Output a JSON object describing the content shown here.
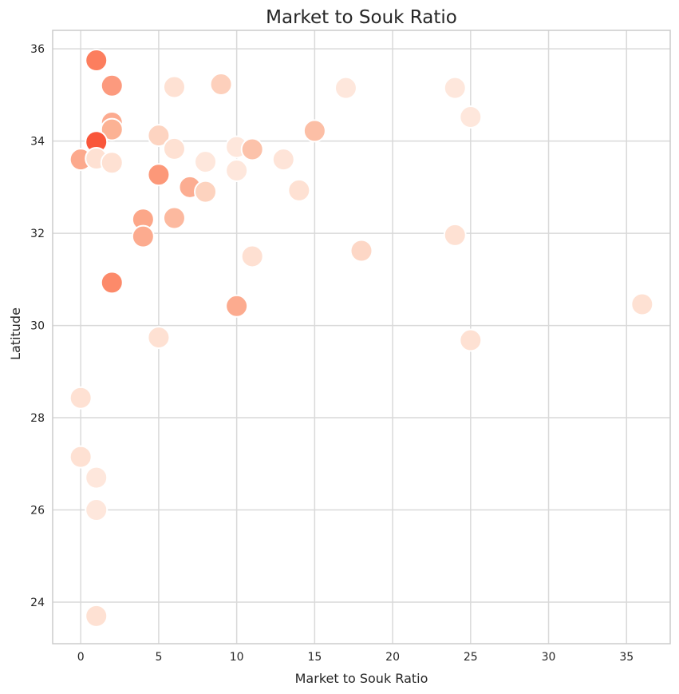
{
  "chart_data": {
    "type": "scatter",
    "title": "Market to Souk Ratio",
    "xlabel": "Market to Souk Ratio",
    "ylabel": "Latitude",
    "xlim": [
      -1.8,
      37.8
    ],
    "ylim": [
      23.1,
      36.4
    ],
    "xticks": [
      0,
      5,
      10,
      15,
      20,
      25,
      30,
      35
    ],
    "yticks": [
      24,
      26,
      28,
      30,
      32,
      34,
      36
    ],
    "xtick_labels": [
      "0",
      "5",
      "10",
      "15",
      "20",
      "25",
      "30",
      "35"
    ],
    "ytick_labels": [
      "24",
      "26",
      "28",
      "30",
      "32",
      "34",
      "36"
    ],
    "grid": true,
    "background": "#ffffff",
    "grid_color": "#d9d9d9",
    "marker_edge_color": "#ffffff",
    "points": [
      {
        "x": 1,
        "y": 35.75,
        "color": "#fc7e5e"
      },
      {
        "x": 2,
        "y": 35.2,
        "color": "#fc9a7e"
      },
      {
        "x": 2,
        "y": 34.4,
        "color": "#fcab90"
      },
      {
        "x": 2,
        "y": 34.25,
        "color": "#fcb294"
      },
      {
        "x": 1,
        "y": 33.98,
        "color": "#f9563a"
      },
      {
        "x": 0,
        "y": 33.6,
        "color": "#fca98d"
      },
      {
        "x": 1,
        "y": 33.62,
        "color": "#fee1d3"
      },
      {
        "x": 2,
        "y": 33.53,
        "color": "#fee1d3"
      },
      {
        "x": 5,
        "y": 34.12,
        "color": "#fdd4c1"
      },
      {
        "x": 6,
        "y": 35.17,
        "color": "#fee1d3"
      },
      {
        "x": 9,
        "y": 35.23,
        "color": "#fdd0bc"
      },
      {
        "x": 6,
        "y": 33.83,
        "color": "#fee1d3"
      },
      {
        "x": 5,
        "y": 33.27,
        "color": "#fc9879"
      },
      {
        "x": 7,
        "y": 33.0,
        "color": "#fcad92"
      },
      {
        "x": 8,
        "y": 33.55,
        "color": "#fee7dc"
      },
      {
        "x": 8,
        "y": 32.9,
        "color": "#fdd3bf"
      },
      {
        "x": 10,
        "y": 33.87,
        "color": "#fee7dc"
      },
      {
        "x": 10,
        "y": 33.36,
        "color": "#fee7dc"
      },
      {
        "x": 11,
        "y": 33.82,
        "color": "#fcc2aa"
      },
      {
        "x": 13,
        "y": 33.6,
        "color": "#fee4d8"
      },
      {
        "x": 14,
        "y": 32.93,
        "color": "#fee1d3"
      },
      {
        "x": 15,
        "y": 34.22,
        "color": "#fcbfa6"
      },
      {
        "x": 17,
        "y": 35.15,
        "color": "#fee7dc"
      },
      {
        "x": 24,
        "y": 35.15,
        "color": "#fee7dc"
      },
      {
        "x": 25,
        "y": 34.52,
        "color": "#fee7dc"
      },
      {
        "x": 4,
        "y": 32.3,
        "color": "#fca789"
      },
      {
        "x": 4,
        "y": 31.93,
        "color": "#fcab8f"
      },
      {
        "x": 6,
        "y": 32.33,
        "color": "#fcb99f"
      },
      {
        "x": 11,
        "y": 31.5,
        "color": "#fee0d2"
      },
      {
        "x": 18,
        "y": 31.62,
        "color": "#fdd7c6"
      },
      {
        "x": 24,
        "y": 31.96,
        "color": "#fee1d3"
      },
      {
        "x": 2,
        "y": 30.93,
        "color": "#fc8a6a"
      },
      {
        "x": 10,
        "y": 30.42,
        "color": "#fcab8f"
      },
      {
        "x": 36,
        "y": 30.46,
        "color": "#fee1d3"
      },
      {
        "x": 5,
        "y": 29.74,
        "color": "#fee1d3"
      },
      {
        "x": 25,
        "y": 29.68,
        "color": "#fee1d3"
      },
      {
        "x": 0,
        "y": 28.43,
        "color": "#fee1d3"
      },
      {
        "x": 0,
        "y": 27.15,
        "color": "#fee1d3"
      },
      {
        "x": 1,
        "y": 26.7,
        "color": "#fee7dc"
      },
      {
        "x": 1,
        "y": 26.0,
        "color": "#fee7dc"
      },
      {
        "x": 1,
        "y": 23.7,
        "color": "#fee1d3"
      }
    ]
  }
}
